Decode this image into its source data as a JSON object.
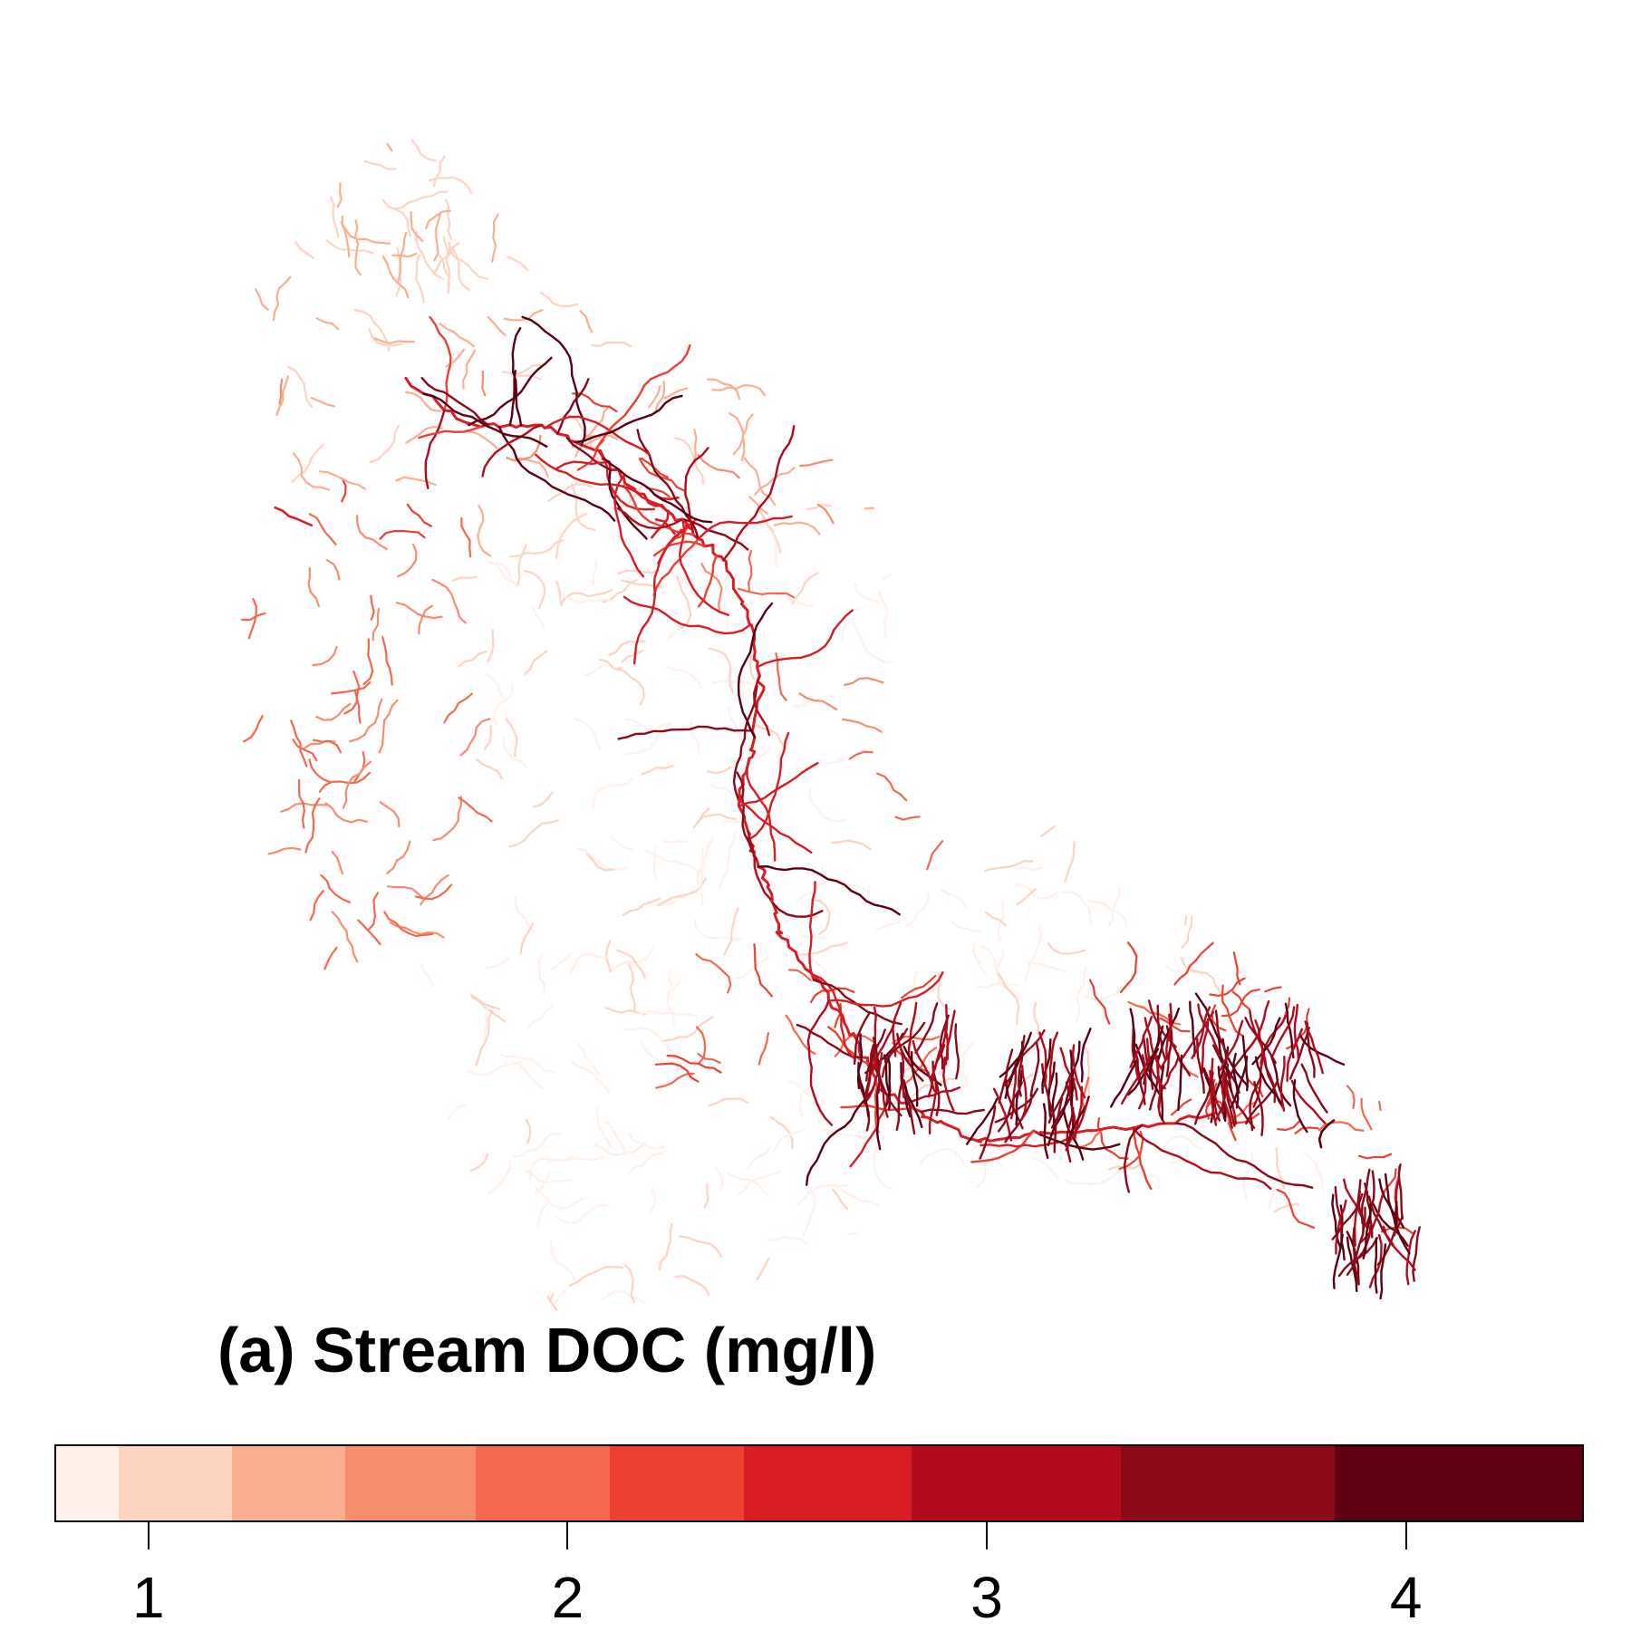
{
  "title": "(a) Stream DOC (mg/l)",
  "legend": {
    "min": 0.78,
    "max": 4.42,
    "ticks": [
      {
        "value": 1,
        "label": "1"
      },
      {
        "value": 2,
        "label": "2"
      },
      {
        "value": 3,
        "label": "3"
      },
      {
        "value": 4,
        "label": "4"
      }
    ],
    "bins": [
      {
        "from": 0.78,
        "to": 0.93,
        "color": "#fff0ea"
      },
      {
        "from": 0.93,
        "to": 1.2,
        "color": "#fdd4c2"
      },
      {
        "from": 1.2,
        "to": 1.47,
        "color": "#fcae92"
      },
      {
        "from": 1.47,
        "to": 1.78,
        "color": "#f88c6e"
      },
      {
        "from": 1.78,
        "to": 2.1,
        "color": "#f6684e"
      },
      {
        "from": 2.1,
        "to": 2.42,
        "color": "#ec4131"
      },
      {
        "from": 2.42,
        "to": 2.82,
        "color": "#d81d24"
      },
      {
        "from": 2.82,
        "to": 3.32,
        "color": "#b10b1c"
      },
      {
        "from": 3.32,
        "to": 3.83,
        "color": "#8c0a18"
      },
      {
        "from": 3.83,
        "to": 4.42,
        "color": "#5e0011"
      }
    ]
  }
}
